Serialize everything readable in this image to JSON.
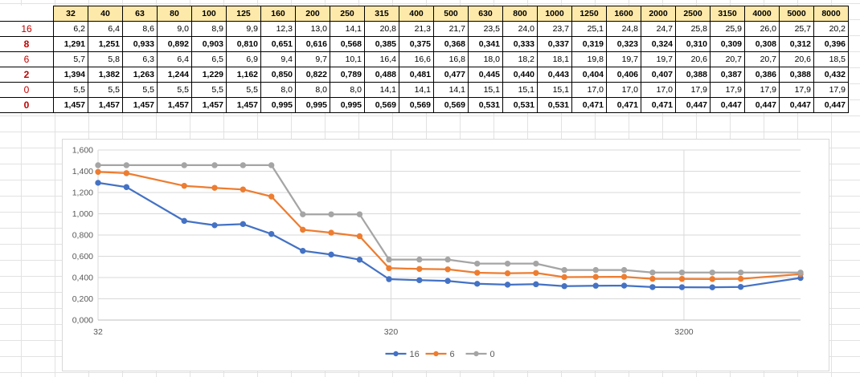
{
  "table": {
    "header": [
      "32",
      "40",
      "63",
      "80",
      "100",
      "125",
      "160",
      "200",
      "250",
      "315",
      "400",
      "500",
      "630",
      "800",
      "1000",
      "1250",
      "1600",
      "2000",
      "2500",
      "3150",
      "4000",
      "5000",
      "8000"
    ],
    "rows": [
      {
        "label": "16",
        "style": "plain",
        "values": [
          "6,2",
          "6,4",
          "8,6",
          "9,0",
          "8,9",
          "9,9",
          "12,3",
          "13,0",
          "14,1",
          "20,8",
          "21,3",
          "21,7",
          "23,5",
          "24,0",
          "23,7",
          "25,1",
          "24,8",
          "24,7",
          "25,8",
          "25,9",
          "26,0",
          "25,7",
          "20,2"
        ]
      },
      {
        "label": "8",
        "style": "bold",
        "values": [
          "1,291",
          "1,251",
          "0,933",
          "0,892",
          "0,903",
          "0,810",
          "0,651",
          "0,616",
          "0,568",
          "0,385",
          "0,375",
          "0,368",
          "0,341",
          "0,333",
          "0,337",
          "0,319",
          "0,323",
          "0,324",
          "0,310",
          "0,309",
          "0,308",
          "0,312",
          "0,396"
        ]
      },
      {
        "label": "6",
        "style": "plain",
        "values": [
          "5,7",
          "5,8",
          "6,3",
          "6,4",
          "6,5",
          "6,9",
          "9,4",
          "9,7",
          "10,1",
          "16,4",
          "16,6",
          "16,8",
          "18,0",
          "18,2",
          "18,1",
          "19,8",
          "19,7",
          "19,7",
          "20,6",
          "20,7",
          "20,7",
          "20,6",
          "18,5"
        ]
      },
      {
        "label": "2",
        "style": "bold",
        "values": [
          "1,394",
          "1,382",
          "1,263",
          "1,244",
          "1,229",
          "1,162",
          "0,850",
          "0,822",
          "0,789",
          "0,488",
          "0,481",
          "0,477",
          "0,445",
          "0,440",
          "0,443",
          "0,404",
          "0,406",
          "0,407",
          "0,388",
          "0,387",
          "0,386",
          "0,388",
          "0,432"
        ]
      },
      {
        "label": "0",
        "style": "plain",
        "values": [
          "5,5",
          "5,5",
          "5,5",
          "5,5",
          "5,5",
          "5,5",
          "8,0",
          "8,0",
          "8,0",
          "14,1",
          "14,1",
          "14,1",
          "15,1",
          "15,1",
          "15,1",
          "17,0",
          "17,0",
          "17,0",
          "17,9",
          "17,9",
          "17,9",
          "17,9",
          "17,9"
        ]
      },
      {
        "label": "0",
        "style": "bold",
        "values": [
          "1,457",
          "1,457",
          "1,457",
          "1,457",
          "1,457",
          "1,457",
          "0,995",
          "0,995",
          "0,995",
          "0,569",
          "0,569",
          "0,569",
          "0,531",
          "0,531",
          "0,531",
          "0,471",
          "0,471",
          "0,471",
          "0,447",
          "0,447",
          "0,447",
          "0,447",
          "0,447"
        ]
      }
    ]
  },
  "chart_data": {
    "type": "line",
    "x_scale": "log",
    "x": [
      32,
      40,
      63,
      80,
      100,
      125,
      160,
      200,
      250,
      315,
      400,
      500,
      630,
      800,
      1000,
      1250,
      1600,
      2000,
      2500,
      3150,
      4000,
      5000,
      8000
    ],
    "xlim": [
      32,
      8000
    ],
    "x_tick_labels": [
      "32",
      "320",
      "3200"
    ],
    "x_tick_values": [
      32,
      320,
      3200
    ],
    "ylim": [
      0,
      1.6
    ],
    "y_tick_labels": [
      "0,000",
      "0,200",
      "0,400",
      "0,600",
      "0,800",
      "1,000",
      "1,200",
      "1,400",
      "1,600"
    ],
    "y_tick_values": [
      0,
      0.2,
      0.4,
      0.6,
      0.8,
      1.0,
      1.2,
      1.4,
      1.6
    ],
    "grid": "horizontal and major vertical",
    "legend": "bottom",
    "series": [
      {
        "name": "16",
        "color": "#4472c4",
        "values": [
          1.291,
          1.251,
          0.933,
          0.892,
          0.903,
          0.81,
          0.651,
          0.616,
          0.568,
          0.385,
          0.375,
          0.368,
          0.341,
          0.333,
          0.337,
          0.319,
          0.323,
          0.324,
          0.31,
          0.309,
          0.308,
          0.312,
          0.396
        ]
      },
      {
        "name": "6",
        "color": "#ed7d31",
        "values": [
          1.394,
          1.382,
          1.263,
          1.244,
          1.229,
          1.162,
          0.85,
          0.822,
          0.789,
          0.488,
          0.481,
          0.477,
          0.445,
          0.44,
          0.443,
          0.404,
          0.406,
          0.407,
          0.388,
          0.387,
          0.386,
          0.388,
          0.432
        ]
      },
      {
        "name": "0",
        "color": "#a5a5a5",
        "values": [
          1.457,
          1.457,
          1.457,
          1.457,
          1.457,
          1.457,
          0.995,
          0.995,
          0.995,
          0.569,
          0.569,
          0.569,
          0.531,
          0.531,
          0.531,
          0.471,
          0.471,
          0.471,
          0.447,
          0.447,
          0.447,
          0.447,
          0.447
        ]
      }
    ]
  }
}
